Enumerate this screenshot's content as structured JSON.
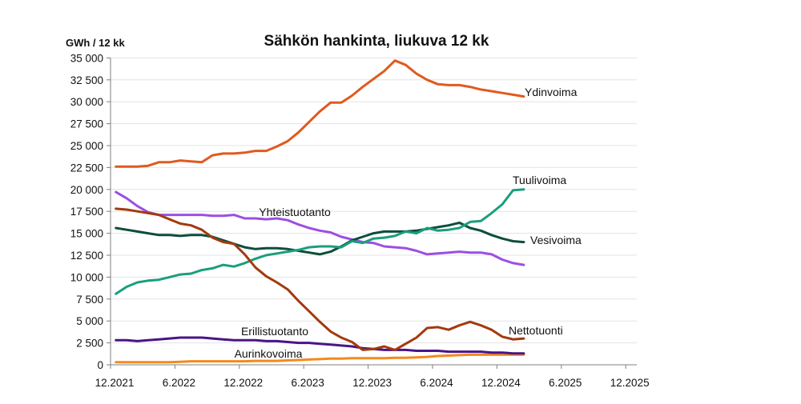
{
  "chart_data": {
    "type": "line",
    "title": "Sähkön hankinta, liukuva 12 kk",
    "ylabel": "GWh / 12 kk",
    "xlabel": "",
    "ylim": [
      0,
      35000
    ],
    "y_ticks": [
      0,
      2500,
      5000,
      7500,
      10000,
      12500,
      15000,
      17500,
      20000,
      22500,
      25000,
      27500,
      30000,
      32500,
      35000
    ],
    "y_tick_labels": [
      "0",
      "2 500",
      "5 000",
      "7 500",
      "10 000",
      "12 500",
      "15 000",
      "17 500",
      "20 000",
      "22 500",
      "25 000",
      "27 500",
      "30 000",
      "32 500",
      "35 000"
    ],
    "x_tick_labels": [
      "12.2021",
      "6.2022",
      "12.2022",
      "6.2023",
      "12.2023",
      "6.2024",
      "12.2024",
      "6.2025",
      "12.2025"
    ],
    "x_range_months": [
      0,
      48
    ],
    "x_start": "12.2021",
    "x_step": "1 month",
    "grid": true,
    "legend": "inline labels",
    "series": [
      {
        "name": "Ydinvoima",
        "color": "#E05A1E",
        "values": [
          22600,
          22600,
          22600,
          22700,
          23100,
          23100,
          23300,
          23200,
          23100,
          23900,
          24100,
          24100,
          24200,
          24400,
          24400,
          24900,
          25500,
          26500,
          27700,
          28900,
          29900,
          29900,
          30700,
          31700,
          32600,
          33500,
          34700,
          34200,
          33200,
          32500,
          32000,
          31900,
          31900,
          31700,
          31400,
          31200,
          31000,
          30800,
          30600
        ]
      },
      {
        "name": "Tuulivoima",
        "color": "#1A9E7C",
        "values": [
          8100,
          8900,
          9400,
          9600,
          9700,
          10000,
          10300,
          10400,
          10800,
          11000,
          11400,
          11200,
          11600,
          12100,
          12500,
          12700,
          12900,
          13100,
          13400,
          13500,
          13500,
          13400,
          14100,
          13900,
          14400,
          14500,
          14700,
          15200,
          15000,
          15600,
          15300,
          15400,
          15600,
          16300,
          16400,
          17300,
          18300,
          19900,
          20000
        ]
      },
      {
        "name": "Vesivoima",
        "color": "#0E4D3E",
        "values": [
          15600,
          15400,
          15200,
          15000,
          14800,
          14800,
          14700,
          14800,
          14800,
          14600,
          14200,
          13800,
          13400,
          13200,
          13300,
          13300,
          13200,
          13000,
          12800,
          12600,
          12900,
          13500,
          14200,
          14600,
          15000,
          15200,
          15200,
          15200,
          15300,
          15500,
          15700,
          15900,
          16200,
          15600,
          15300,
          14800,
          14400,
          14100,
          14000
        ]
      },
      {
        "name": "Yhteistuotanto",
        "color": "#9B4FE3",
        "values": [
          19700,
          19000,
          18100,
          17400,
          17100,
          17100,
          17100,
          17100,
          17100,
          17000,
          17000,
          17100,
          16700,
          16700,
          16600,
          16700,
          16500,
          16000,
          15600,
          15300,
          15100,
          14600,
          14300,
          14000,
          13900,
          13500,
          13400,
          13300,
          13000,
          12600,
          12700,
          12800,
          12900,
          12800,
          12800,
          12600,
          12000,
          11600,
          11400
        ]
      },
      {
        "name": "Nettotuonti",
        "color": "#A33A0F",
        "values": [
          17800,
          17700,
          17500,
          17300,
          17100,
          16600,
          16100,
          15900,
          15400,
          14500,
          14000,
          13800,
          12600,
          11100,
          10100,
          9400,
          8600,
          7300,
          6100,
          4900,
          3800,
          3100,
          2600,
          1700,
          1800,
          2100,
          1700,
          2400,
          3100,
          4200,
          4300,
          4000,
          4500,
          4900,
          4500,
          4000,
          3200,
          2900,
          3000
        ]
      },
      {
        "name": "Erillistuotanto",
        "color": "#4A1487",
        "values": [
          2800,
          2800,
          2700,
          2800,
          2900,
          3000,
          3100,
          3100,
          3100,
          3000,
          2900,
          2800,
          2800,
          2800,
          2700,
          2700,
          2600,
          2500,
          2500,
          2400,
          2300,
          2200,
          2100,
          1900,
          1800,
          1700,
          1700,
          1700,
          1600,
          1600,
          1600,
          1500,
          1500,
          1500,
          1500,
          1400,
          1400,
          1300,
          1300
        ]
      },
      {
        "name": "Aurinkovoima",
        "color": "#F28A1C",
        "values": [
          300,
          300,
          300,
          300,
          300,
          300,
          350,
          400,
          400,
          400,
          400,
          400,
          400,
          450,
          450,
          450,
          500,
          550,
          600,
          650,
          700,
          700,
          750,
          750,
          750,
          750,
          800,
          800,
          850,
          900,
          1000,
          1050,
          1100,
          1150,
          1150,
          1150,
          1150,
          1150,
          1150
        ]
      }
    ]
  }
}
